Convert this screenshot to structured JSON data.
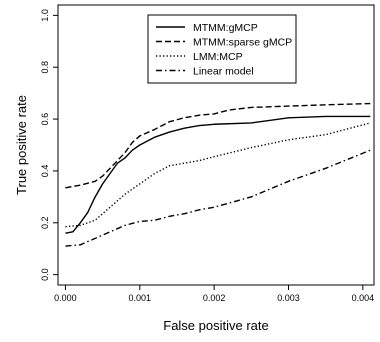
{
  "chart_data": {
    "type": "line",
    "title": "",
    "xlabel": "False positive rate",
    "ylabel": "True positive rate",
    "xlim": [
      -0.0001,
      0.00415
    ],
    "ylim": [
      -0.04,
      1.04
    ],
    "x_ticks": [
      0.0,
      0.001,
      0.002,
      0.003,
      0.004
    ],
    "x_tick_labels": [
      "0.000",
      "0.001",
      "0.002",
      "0.003",
      "0.004"
    ],
    "y_ticks": [
      0.0,
      0.2,
      0.4,
      0.6,
      0.8,
      1.0
    ],
    "y_tick_labels": [
      "0.0",
      "0.2",
      "0.4",
      "0.6",
      "0.8",
      "1.0"
    ],
    "grid": false,
    "legend_position": "top-right",
    "series": [
      {
        "name": "MTMM:gMCP",
        "line_style": "solid",
        "color": "#000000",
        "points": [
          [
            0.0,
            0.16
          ],
          [
            0.0001,
            0.165
          ],
          [
            0.0002,
            0.2
          ],
          [
            0.0003,
            0.24
          ],
          [
            0.0004,
            0.3
          ],
          [
            0.0005,
            0.35
          ],
          [
            0.0006,
            0.39
          ],
          [
            0.0007,
            0.43
          ],
          [
            0.0008,
            0.45
          ],
          [
            0.0009,
            0.48
          ],
          [
            0.001,
            0.5
          ],
          [
            0.0012,
            0.53
          ],
          [
            0.0014,
            0.55
          ],
          [
            0.0016,
            0.565
          ],
          [
            0.0018,
            0.575
          ],
          [
            0.002,
            0.58
          ],
          [
            0.0025,
            0.585
          ],
          [
            0.003,
            0.605
          ],
          [
            0.0035,
            0.61
          ],
          [
            0.0041,
            0.61
          ]
        ]
      },
      {
        "name": "MTMM:sparse gMCP",
        "line_style": "dashed",
        "color": "#000000",
        "points": [
          [
            0.0,
            0.335
          ],
          [
            0.0002,
            0.345
          ],
          [
            0.0004,
            0.36
          ],
          [
            0.0005,
            0.38
          ],
          [
            0.0006,
            0.41
          ],
          [
            0.0007,
            0.44
          ],
          [
            0.0008,
            0.47
          ],
          [
            0.0009,
            0.51
          ],
          [
            0.001,
            0.535
          ],
          [
            0.0012,
            0.56
          ],
          [
            0.0014,
            0.59
          ],
          [
            0.0016,
            0.605
          ],
          [
            0.0018,
            0.615
          ],
          [
            0.002,
            0.62
          ],
          [
            0.0022,
            0.635
          ],
          [
            0.0025,
            0.645
          ],
          [
            0.003,
            0.65
          ],
          [
            0.0035,
            0.655
          ],
          [
            0.0041,
            0.66
          ]
        ]
      },
      {
        "name": "LMM:MCP",
        "line_style": "dotted",
        "color": "#000000",
        "points": [
          [
            0.0,
            0.185
          ],
          [
            0.0002,
            0.19
          ],
          [
            0.0004,
            0.21
          ],
          [
            0.0006,
            0.26
          ],
          [
            0.0008,
            0.31
          ],
          [
            0.001,
            0.35
          ],
          [
            0.0012,
            0.39
          ],
          [
            0.0014,
            0.42
          ],
          [
            0.0016,
            0.43
          ],
          [
            0.0018,
            0.44
          ],
          [
            0.002,
            0.455
          ],
          [
            0.0025,
            0.49
          ],
          [
            0.003,
            0.52
          ],
          [
            0.0035,
            0.54
          ],
          [
            0.0041,
            0.585
          ]
        ]
      },
      {
        "name": "Linear model",
        "line_style": "dashdot",
        "color": "#000000",
        "points": [
          [
            0.0,
            0.11
          ],
          [
            0.0002,
            0.115
          ],
          [
            0.0004,
            0.14
          ],
          [
            0.0006,
            0.165
          ],
          [
            0.0008,
            0.19
          ],
          [
            0.001,
            0.205
          ],
          [
            0.0012,
            0.21
          ],
          [
            0.0014,
            0.225
          ],
          [
            0.0016,
            0.235
          ],
          [
            0.0018,
            0.25
          ],
          [
            0.002,
            0.26
          ],
          [
            0.0025,
            0.3
          ],
          [
            0.003,
            0.36
          ],
          [
            0.0035,
            0.41
          ],
          [
            0.0041,
            0.48
          ]
        ]
      }
    ]
  }
}
